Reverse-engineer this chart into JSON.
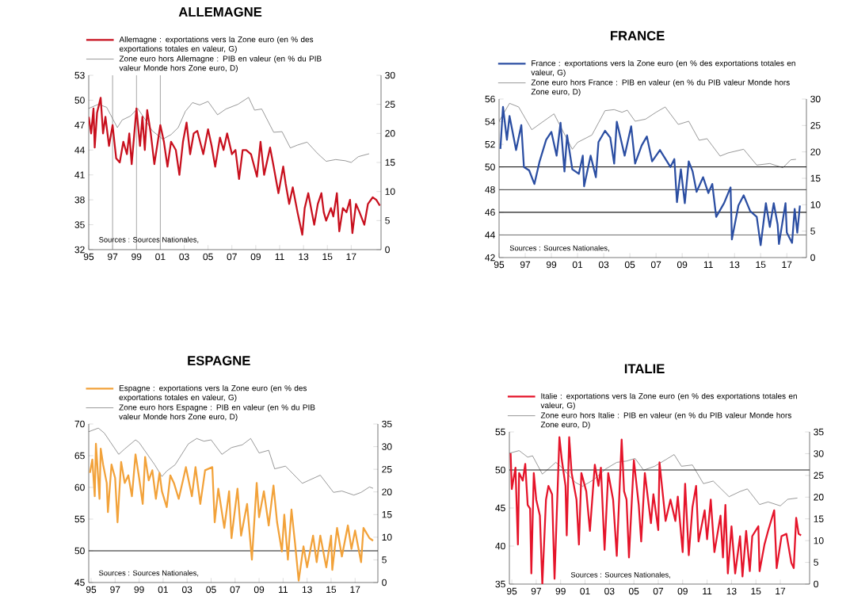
{
  "chart_data": [
    {
      "type": "line",
      "title": "ALLEMAGNE",
      "legend": "top",
      "xlim": [
        1995,
        2019.5
      ],
      "ylim": [
        32,
        53
      ],
      "y2lim": [
        0,
        30
      ],
      "xticks": [
        {
          "value": 1995,
          "label": "95"
        },
        {
          "value": 1997,
          "label": "97"
        },
        {
          "value": 1999,
          "label": "99"
        },
        {
          "value": 2001,
          "label": "01"
        },
        {
          "value": 2003,
          "label": "03"
        },
        {
          "value": 2005,
          "label": "05"
        },
        {
          "value": 2007,
          "label": "07"
        },
        {
          "value": 2009,
          "label": "09"
        },
        {
          "value": 2011,
          "label": "11"
        },
        {
          "value": 2013,
          "label": "13"
        },
        {
          "value": 2015,
          "label": "15"
        },
        {
          "value": 2017,
          "label": "17"
        }
      ],
      "yticks": [
        32,
        35,
        38,
        41,
        44,
        47,
        50,
        53
      ],
      "y2ticks": [
        0,
        5,
        10,
        15,
        20,
        25,
        30
      ],
      "series": [
        {
          "name": "Allemagne : exportations vers la Zone euro (en % des exportations totales en valeur, G)",
          "color": "#c8101e",
          "x": [
            1995.0,
            1995.2,
            1995.4,
            1995.5,
            1995.7,
            1996.0,
            1996.2,
            1996.4,
            1996.7,
            1997.0,
            1997.3,
            1997.6,
            1997.9,
            1998.2,
            1998.4,
            1998.6,
            1999.0,
            1999.3,
            1999.5,
            1999.7,
            1999.9,
            2000.2,
            2000.5,
            2001.0,
            2001.3,
            2001.6,
            2001.9,
            2002.3,
            2002.6,
            2002.9,
            2003.2,
            2003.5,
            2003.8,
            2004.1,
            2004.6,
            2005.0,
            2005.3,
            2005.6,
            2006.0,
            2006.3,
            2006.6,
            2007.0,
            2007.3,
            2007.6,
            2007.9,
            2008.2,
            2008.6,
            2009.1,
            2009.4,
            2009.7,
            2010.2,
            2010.5,
            2010.9,
            2011.3,
            2011.5,
            2011.8,
            2012.1,
            2012.5,
            2012.9,
            2013.1,
            2013.4,
            2013.7,
            2013.9,
            2014.2,
            2014.5,
            2014.7,
            2014.9,
            2015.3,
            2015.5,
            2015.8,
            2016.0,
            2016.3,
            2016.6,
            2016.9,
            2017.1,
            2017.4,
            2017.7,
            2018.1,
            2018.4,
            2018.8,
            2019.1,
            2019.4
          ],
          "values": [
            48,
            46,
            49,
            44.3,
            48.5,
            50.3,
            46,
            48,
            44.5,
            47,
            43,
            42.5,
            45,
            43.5,
            46,
            42.3,
            49,
            44.5,
            48,
            44,
            48.8,
            46,
            42.3,
            47,
            45,
            42,
            45,
            44,
            41,
            45,
            47.3,
            43.5,
            46,
            46.3,
            43.5,
            46.5,
            44.5,
            42,
            45.5,
            44,
            46,
            43.5,
            44,
            40.5,
            44,
            44,
            43.5,
            40.8,
            45,
            41,
            44.3,
            42,
            38.8,
            42,
            40,
            37.5,
            39.5,
            36.5,
            33.8,
            37,
            38.8,
            36.5,
            35,
            37.5,
            38.8,
            36.5,
            35.5,
            37,
            36,
            38.8,
            34.2,
            37,
            36.5,
            38,
            34,
            37.5,
            36.5,
            35,
            37.5,
            38.3,
            38,
            37.3
          ]
        },
        {
          "name": "Zone euro hors Allemagne : PIB en valeur (en % du PIB valeur Monde hors Zone euro, D)",
          "color": "#7f7f7f",
          "axis": "y2",
          "x": [
            1995.0,
            1995.8,
            1996.5,
            1997.4,
            1997.8,
            1998.5,
            1999.1,
            1999.7,
            2000.3,
            2001.2,
            2001.9,
            2002.5,
            2003.1,
            2003.7,
            2004.3,
            2005.0,
            2005.8,
            2006.5,
            2007.5,
            2008.4,
            2008.9,
            2009.5,
            2010.5,
            2011.2,
            2011.9,
            2012.5,
            2013.3,
            2014.2,
            2014.9,
            2015.7,
            2016.5,
            2017.0,
            2017.6,
            2018.5
          ],
          "values": [
            24.3,
            25,
            24.5,
            21,
            22.3,
            23,
            24.3,
            22.5,
            20.5,
            19,
            19.8,
            21,
            23.8,
            25.3,
            24.9,
            25.5,
            23.2,
            24.2,
            25,
            26.2,
            24,
            24.2,
            20.2,
            20.3,
            17.5,
            18,
            18.5,
            16.5,
            15.2,
            15.5,
            15.3,
            15,
            16,
            16.5
          ]
        }
      ],
      "ref_lines": [
        {
          "axis": "x",
          "value": 1997,
          "color": "#8c8c8c"
        },
        {
          "axis": "x",
          "value": 1999,
          "color": "#8c8c8c"
        },
        {
          "axis": "x",
          "value": 2001,
          "color": "#8c8c8c"
        }
      ],
      "annotations": [
        "Sources : Sources Nationales,"
      ]
    },
    {
      "type": "line",
      "title": "FRANCE",
      "legend": "top",
      "xlim": [
        1995,
        2018.5
      ],
      "ylim": [
        42,
        56
      ],
      "y2lim": [
        0,
        30
      ],
      "xticks": [
        {
          "value": 1995,
          "label": "95"
        },
        {
          "value": 1997,
          "label": "97"
        },
        {
          "value": 1999,
          "label": "99"
        },
        {
          "value": 2001,
          "label": "01"
        },
        {
          "value": 2003,
          "label": "03"
        },
        {
          "value": 2005,
          "label": "05"
        },
        {
          "value": 2007,
          "label": "07"
        },
        {
          "value": 2009,
          "label": "09"
        },
        {
          "value": 2011,
          "label": "11"
        },
        {
          "value": 2013,
          "label": "13"
        },
        {
          "value": 2015,
          "label": "15"
        },
        {
          "value": 2017,
          "label": "17"
        }
      ],
      "yticks": [
        42,
        44,
        46,
        48,
        50,
        52,
        54,
        56
      ],
      "y2ticks": [
        0,
        5,
        10,
        15,
        20,
        25,
        30
      ],
      "series": [
        {
          "name": "France : exportations vers la Zone euro (en % des exportations totales en valeur, G)",
          "color": "#2b4ea2",
          "x": [
            1995.1,
            1995.3,
            1995.6,
            1995.8,
            1996.3,
            1996.7,
            1996.9,
            1997.3,
            1997.7,
            1998.1,
            1998.6,
            1999.0,
            1999.4,
            1999.7,
            2000.0,
            2000.2,
            2000.6,
            2001.1,
            2001.4,
            2001.5,
            2002.0,
            2002.4,
            2002.6,
            2003.1,
            2003.5,
            2003.8,
            2004.0,
            2004.6,
            2005.1,
            2005.4,
            2005.9,
            2006.3,
            2006.7,
            2007.3,
            2008.1,
            2008.4,
            2008.6,
            2008.9,
            2009.2,
            2009.5,
            2009.8,
            2010.1,
            2010.6,
            2011.0,
            2011.3,
            2011.6,
            2012.2,
            2012.7,
            2012.8,
            2013.3,
            2013.7,
            2014.2,
            2014.7,
            2015.0,
            2015.4,
            2015.7,
            2016.0,
            2016.3,
            2016.4,
            2016.9,
            2017.0,
            2017.4,
            2017.6,
            2017.8,
            2018.0
          ],
          "values": [
            51.6,
            55.3,
            52.4,
            54.5,
            51.5,
            53.7,
            50,
            49.7,
            48.5,
            50.5,
            52.4,
            53.1,
            51,
            53.9,
            49.6,
            52.8,
            49.8,
            49.4,
            51,
            48.3,
            51,
            49.1,
            52.2,
            53.2,
            52.6,
            50.3,
            54,
            51,
            53.6,
            50.3,
            51.9,
            52.7,
            50.5,
            51.5,
            50,
            50.7,
            46.9,
            49.8,
            46.8,
            50.5,
            49.6,
            47.8,
            49.1,
            47.7,
            48.5,
            45.6,
            46.8,
            48.2,
            43.6,
            46.6,
            47.5,
            46.1,
            45.6,
            43.1,
            46.8,
            44.7,
            46.8,
            44.9,
            43.2,
            46.8,
            44.2,
            43.3,
            46.3,
            44.2,
            46.6
          ]
        },
        {
          "name": "Zone euro hors France : PIB en valeur (en % du PIB valeur Monde hors Zone euro, D)",
          "color": "#7f7f7f",
          "axis": "y2",
          "x": [
            1995.0,
            1995.8,
            1996.5,
            1997.5,
            1998.4,
            1999.2,
            2000.6,
            2001.0,
            2002.1,
            2003.1,
            2003.8,
            2004.4,
            2004.8,
            2005.4,
            2006.2,
            2007.0,
            2007.7,
            2008.7,
            2009.5,
            2010.3,
            2010.9,
            2011.9,
            2012.5,
            2013.7,
            2014.7,
            2015.7,
            2016.7,
            2017.3,
            2017.7
          ],
          "values": [
            25.8,
            29.2,
            28.5,
            24.2,
            25.8,
            27.2,
            20.5,
            21.8,
            23.2,
            27.8,
            28,
            27.5,
            27.9,
            25.8,
            26.2,
            27.5,
            28.5,
            25.2,
            25.8,
            22.2,
            22.5,
            19.2,
            19.8,
            20.5,
            17.5,
            17.8,
            17,
            18.5,
            18.6
          ]
        }
      ],
      "ref_lines": [
        {
          "axis": "y",
          "value": 50,
          "color": "#1a1a1a"
        },
        {
          "axis": "y",
          "value": 48,
          "color": "#555555"
        },
        {
          "axis": "y",
          "value": 46,
          "color": "#1a1a1a"
        },
        {
          "axis": "y",
          "value": 44,
          "color": "#777777"
        }
      ],
      "annotations": [
        "Sources : Sources Nationales,"
      ]
    },
    {
      "type": "line",
      "title": "ESPAGNE",
      "legend": "top",
      "xlim": [
        1994.8,
        2018.9
      ],
      "ylim": [
        45,
        70
      ],
      "y2lim": [
        0,
        35
      ],
      "xticks": [
        {
          "value": 1995,
          "label": "95"
        },
        {
          "value": 1997,
          "label": "97"
        },
        {
          "value": 1999,
          "label": "99"
        },
        {
          "value": 2001,
          "label": "01"
        },
        {
          "value": 2003,
          "label": "03"
        },
        {
          "value": 2005,
          "label": "05"
        },
        {
          "value": 2007,
          "label": "07"
        },
        {
          "value": 2009,
          "label": "09"
        },
        {
          "value": 2011,
          "label": "11"
        },
        {
          "value": 2013,
          "label": "13"
        },
        {
          "value": 2015,
          "label": "15"
        },
        {
          "value": 2017,
          "label": "17"
        }
      ],
      "yticks": [
        45,
        50,
        55,
        60,
        65,
        70
      ],
      "y2ticks": [
        0,
        5,
        10,
        15,
        20,
        25,
        30,
        35
      ],
      "series": [
        {
          "name": "Espagne : exportations vers la Zone euro (en % des exportations totales en valeur, G)",
          "color": "#f2a23a",
          "x": [
            1994.9,
            1995.1,
            1995.3,
            1995.4,
            1995.7,
            1995.8,
            1996.0,
            1996.3,
            1996.4,
            1996.7,
            1997.0,
            1997.2,
            1997.5,
            1997.8,
            1998.1,
            1998.4,
            1998.7,
            1999.0,
            1999.3,
            1999.5,
            1999.8,
            2000.1,
            2000.4,
            2000.7,
            2000.9,
            2001.3,
            2001.6,
            2001.9,
            2002.3,
            2002.7,
            2002.9,
            2003.4,
            2003.7,
            2004.1,
            2004.5,
            2005.1,
            2005.3,
            2005.6,
            2006.1,
            2006.5,
            2006.7,
            2007.2,
            2007.5,
            2008.0,
            2008.4,
            2008.8,
            2009.0,
            2009.4,
            2009.8,
            2010.2,
            2010.5,
            2010.9,
            2011.1,
            2011.4,
            2011.7,
            2012.0,
            2012.3,
            2012.7,
            2013.0,
            2013.5,
            2013.8,
            2014.1,
            2014.6,
            2015.0,
            2015.1,
            2015.5,
            2015.9,
            2016.4,
            2016.7,
            2017.0,
            2017.5,
            2017.7,
            2018.2,
            2018.5
          ],
          "values": [
            62.3,
            64.4,
            58.6,
            66.9,
            58.2,
            66.1,
            63.6,
            60.7,
            56.1,
            63.6,
            61.5,
            54.5,
            64,
            60.7,
            61.9,
            58.6,
            65.2,
            61.5,
            57.4,
            64.8,
            61.1,
            62.7,
            58.2,
            62.3,
            59.4,
            56.9,
            61.9,
            60.7,
            58.2,
            61.5,
            63.2,
            58.6,
            63.2,
            57.4,
            62.7,
            63.2,
            54.5,
            59.8,
            53.6,
            59.4,
            52,
            59.8,
            52.4,
            57.4,
            48.6,
            60.7,
            55.3,
            59.4,
            54,
            60.3,
            54.5,
            49.9,
            55.7,
            48.6,
            56.5,
            51.1,
            45.3,
            50.7,
            47.4,
            52.4,
            48.2,
            52.4,
            47.4,
            52.4,
            47,
            53.6,
            49.1,
            54,
            50.3,
            53.2,
            48.2,
            53.6,
            52,
            51.6
          ]
        },
        {
          "name": "Zone euro hors Espagne : PIB en valeur (en % du PIB valeur Monde hors Zone euro, D)",
          "color": "#7f7f7f",
          "axis": "y2",
          "x": [
            1994.8,
            1995.6,
            1996.1,
            1997.3,
            1997.8,
            1998.7,
            1999.0,
            2000.3,
            2000.9,
            2001.3,
            2002.0,
            2003.1,
            2003.8,
            2004.4,
            2005.0,
            2005.9,
            2006.7,
            2007.6,
            2008.3,
            2009.0,
            2009.8,
            2010.3,
            2011.2,
            2012.6,
            2013.1,
            2014.1,
            2015.2,
            2015.9,
            2016.9,
            2017.5,
            2018.2,
            2018.5
          ],
          "values": [
            33.3,
            34.1,
            33,
            28.3,
            29.5,
            31.5,
            30.9,
            26,
            23.4,
            24.6,
            26,
            30.6,
            31.8,
            31.2,
            31.5,
            28.3,
            29.8,
            30.4,
            31.8,
            28.6,
            29.2,
            25.1,
            25.7,
            21.9,
            22.5,
            23.7,
            19.9,
            20.2,
            19.3,
            19.9,
            21.1,
            20.8
          ]
        }
      ],
      "ref_lines": [
        {
          "axis": "y",
          "value": 50,
          "color": "#1a1a1a"
        }
      ],
      "annotations": [
        "Sources : Sources Nationales,"
      ]
    },
    {
      "type": "line",
      "title": "ITALIE",
      "legend": "top",
      "xlim": [
        1994.8,
        2019.4
      ],
      "ylim": [
        35,
        55
      ],
      "y2lim": [
        0,
        35
      ],
      "xticks": [
        {
          "value": 1995,
          "label": "95"
        },
        {
          "value": 1997,
          "label": "97"
        },
        {
          "value": 1999,
          "label": "99"
        },
        {
          "value": 2001,
          "label": "01"
        },
        {
          "value": 2003,
          "label": "03"
        },
        {
          "value": 2005,
          "label": "05"
        },
        {
          "value": 2007,
          "label": "07"
        },
        {
          "value": 2009,
          "label": "09"
        },
        {
          "value": 2011,
          "label": "11"
        },
        {
          "value": 2013,
          "label": "13"
        },
        {
          "value": 2015,
          "label": "15"
        },
        {
          "value": 2017,
          "label": "17"
        }
      ],
      "yticks": [
        35,
        40,
        45,
        50,
        55
      ],
      "y2ticks": [
        0,
        5,
        10,
        15,
        20,
        25,
        30,
        35
      ],
      "series": [
        {
          "name": "Italie : exportations vers la Zone euro (en % des exportations totales en valeur, G)",
          "color": "#e5142a",
          "x": [
            1994.9,
            1995.0,
            1995.3,
            1995.5,
            1995.6,
            1995.9,
            1996.1,
            1996.3,
            1996.5,
            1996.6,
            1996.8,
            1997.0,
            1997.3,
            1997.5,
            1997.8,
            1998.0,
            1998.3,
            1998.5,
            1998.9,
            1999.1,
            1999.4,
            1999.5,
            1999.7,
            1999.9,
            2000.3,
            2000.5,
            2000.7,
            2001.1,
            2001.4,
            2001.8,
            2002.1,
            2002.3,
            2002.6,
            2002.9,
            2003.3,
            2003.6,
            2004.0,
            2004.2,
            2004.4,
            2004.6,
            2005.0,
            2005.4,
            2005.6,
            2005.9,
            2006.4,
            2006.6,
            2007.0,
            2007.1,
            2007.6,
            2008.0,
            2008.4,
            2008.6,
            2009.0,
            2009.2,
            2009.5,
            2009.8,
            2010.1,
            2010.3,
            2010.8,
            2011.0,
            2011.3,
            2011.6,
            2012.1,
            2012.3,
            2012.5,
            2012.7,
            2013.0,
            2013.3,
            2013.7,
            2013.9,
            2014.2,
            2014.5,
            2014.7,
            2015.2,
            2015.3,
            2015.7,
            2016.0,
            2016.5,
            2016.7,
            2017.1,
            2017.5,
            2017.9,
            2018.1,
            2018.3,
            2018.5,
            2018.7
          ],
          "values": [
            52.2,
            47.5,
            50.3,
            40.2,
            49.6,
            48.6,
            50.8,
            45.4,
            44.9,
            36.4,
            49.6,
            46.1,
            44,
            35,
            46.1,
            47.9,
            46.8,
            35.7,
            54.3,
            51.3,
            47.9,
            41.4,
            54.3,
            49.6,
            46.1,
            40.2,
            49.6,
            47.2,
            42,
            50.7,
            47.9,
            50.3,
            39.5,
            49.6,
            46.1,
            38.7,
            54,
            47.2,
            46.1,
            38.5,
            51.3,
            45.4,
            40.6,
            49.6,
            43,
            46.8,
            42.1,
            51,
            43.3,
            46.1,
            43.3,
            46.5,
            39.2,
            48.2,
            38.8,
            45.1,
            47.9,
            40.6,
            44.7,
            40.9,
            46.1,
            39.2,
            44,
            38.5,
            45.4,
            36.4,
            42.6,
            36.4,
            41.3,
            36,
            42,
            36.7,
            41.3,
            42.6,
            36.7,
            40.2,
            42,
            44.7,
            37.1,
            41.3,
            41.6,
            37.8,
            37.1,
            43.7,
            41.6,
            41.4
          ]
        },
        {
          "name": "Zone euro hors Italie : PIB en valeur (en % du PIB valeur Monde hors Zone euro, D)",
          "color": "#7f7f7f",
          "axis": "y2",
          "x": [
            1994.8,
            1995.6,
            1996.3,
            1996.7,
            1997.5,
            1998.0,
            1998.6,
            1999.0,
            2000.2,
            2000.8,
            2001.7,
            2002.7,
            2003.6,
            2004.4,
            2005.1,
            2005.8,
            2006.7,
            2007.6,
            2008.3,
            2008.9,
            2009.8,
            2010.7,
            2011.5,
            2012.8,
            2013.7,
            2014.3,
            2015.3,
            2016.0,
            2017.0,
            2017.6,
            2018.4
          ],
          "values": [
            30.1,
            30.7,
            29.2,
            29.5,
            25.3,
            26.5,
            28,
            27.1,
            23.4,
            22.5,
            24,
            26.5,
            28,
            28.3,
            28.9,
            26.2,
            27.1,
            28.6,
            29.8,
            27.1,
            27.4,
            23.1,
            23.7,
            20.1,
            21.3,
            21.9,
            18.3,
            18.9,
            18,
            19.5,
            19.8
          ]
        }
      ],
      "ref_lines": [
        {
          "axis": "y",
          "value": 50,
          "color": "#1a1a1a"
        }
      ],
      "annotations": [
        "Sources : Sources Nationales,"
      ]
    }
  ]
}
